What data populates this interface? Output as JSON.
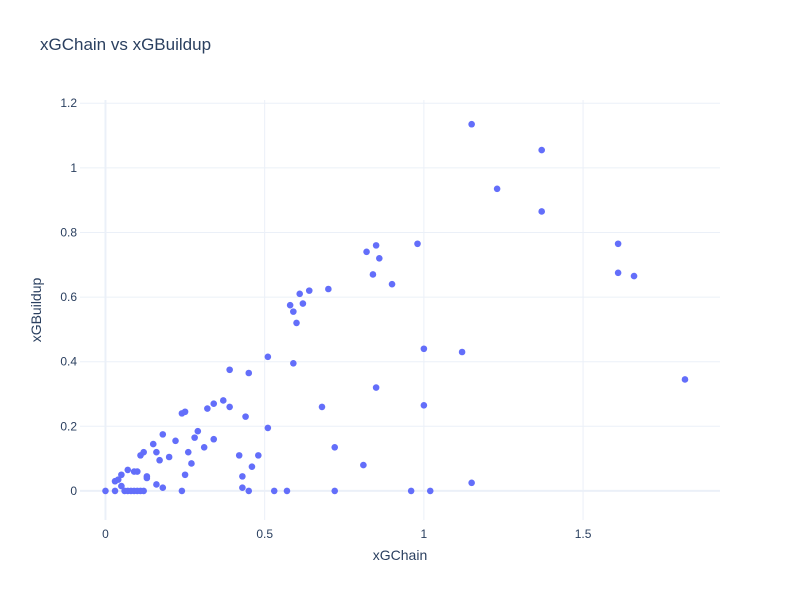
{
  "chart_data": {
    "type": "scatter",
    "title": "xGChain vs xGBuildup",
    "xlabel": "xGChain",
    "ylabel": "xGBuildup",
    "xlim": [
      -0.08,
      1.93
    ],
    "ylim": [
      -0.09,
      1.21
    ],
    "xticks": [
      0,
      0.5,
      1,
      1.5
    ],
    "xtick_labels": [
      "0",
      "0.5",
      "1",
      "1.5"
    ],
    "yticks": [
      0,
      0.2,
      0.4,
      0.6,
      0.8,
      1,
      1.2
    ],
    "ytick_labels": [
      "0",
      "0.2",
      "0.4",
      "0.6",
      "0.8",
      "1",
      "1.2"
    ],
    "grid": true,
    "colors": {
      "marker": "#636efa",
      "grid": "#ebf0f8",
      "zeroline": "#ebf0f8"
    },
    "points": [
      [
        0,
        0
      ],
      [
        0.03,
        0
      ],
      [
        0.03,
        0.03
      ],
      [
        0.04,
        0.035
      ],
      [
        0.05,
        0.05
      ],
      [
        0.05,
        0.015
      ],
      [
        0.06,
        0
      ],
      [
        0.07,
        0
      ],
      [
        0.07,
        0.065
      ],
      [
        0.08,
        0
      ],
      [
        0.09,
        0
      ],
      [
        0.09,
        0.06
      ],
      [
        0.1,
        0
      ],
      [
        0.1,
        0.06
      ],
      [
        0.11,
        0.11
      ],
      [
        0.11,
        0
      ],
      [
        0.12,
        0.12
      ],
      [
        0.12,
        0
      ],
      [
        0.13,
        0.045
      ],
      [
        0.13,
        0.04
      ],
      [
        0.15,
        0.145
      ],
      [
        0.16,
        0.02
      ],
      [
        0.16,
        0.12
      ],
      [
        0.17,
        0.095
      ],
      [
        0.18,
        0.175
      ],
      [
        0.18,
        0.01
      ],
      [
        0.2,
        0.105
      ],
      [
        0.22,
        0.155
      ],
      [
        0.24,
        0.24
      ],
      [
        0.24,
        0
      ],
      [
        0.25,
        0.245
      ],
      [
        0.25,
        0.05
      ],
      [
        0.26,
        0.12
      ],
      [
        0.27,
        0.085
      ],
      [
        0.28,
        0.165
      ],
      [
        0.29,
        0.185
      ],
      [
        0.31,
        0.135
      ],
      [
        0.32,
        0.255
      ],
      [
        0.34,
        0.27
      ],
      [
        0.34,
        0.16
      ],
      [
        0.37,
        0.28
      ],
      [
        0.39,
        0.26
      ],
      [
        0.39,
        0.375
      ],
      [
        0.42,
        0.11
      ],
      [
        0.43,
        0.01
      ],
      [
        0.43,
        0.045
      ],
      [
        0.44,
        0.23
      ],
      [
        0.45,
        0.365
      ],
      [
        0.45,
        0
      ],
      [
        0.46,
        0.075
      ],
      [
        0.48,
        0.11
      ],
      [
        0.51,
        0.195
      ],
      [
        0.51,
        0.415
      ],
      [
        0.53,
        0
      ],
      [
        0.57,
        0
      ],
      [
        0.58,
        0.575
      ],
      [
        0.59,
        0.395
      ],
      [
        0.59,
        0.555
      ],
      [
        0.6,
        0.52
      ],
      [
        0.61,
        0.61
      ],
      [
        0.62,
        0.58
      ],
      [
        0.64,
        0.62
      ],
      [
        0.68,
        0.26
      ],
      [
        0.7,
        0.625
      ],
      [
        0.72,
        0.135
      ],
      [
        0.72,
        0
      ],
      [
        0.81,
        0.08
      ],
      [
        0.82,
        0.74
      ],
      [
        0.84,
        0.67
      ],
      [
        0.85,
        0.76
      ],
      [
        0.85,
        0.32
      ],
      [
        0.86,
        0.72
      ],
      [
        0.9,
        0.64
      ],
      [
        0.96,
        0
      ],
      [
        0.98,
        0.765
      ],
      [
        1,
        0.265
      ],
      [
        1,
        0.44
      ],
      [
        1.02,
        0
      ],
      [
        1.12,
        0.43
      ],
      [
        1.15,
        1.135
      ],
      [
        1.15,
        0.025
      ],
      [
        1.23,
        0.935
      ],
      [
        1.37,
        1.055
      ],
      [
        1.37,
        0.865
      ],
      [
        1.61,
        0.765
      ],
      [
        1.61,
        0.675
      ],
      [
        1.66,
        0.665
      ],
      [
        1.82,
        0.345
      ]
    ]
  }
}
